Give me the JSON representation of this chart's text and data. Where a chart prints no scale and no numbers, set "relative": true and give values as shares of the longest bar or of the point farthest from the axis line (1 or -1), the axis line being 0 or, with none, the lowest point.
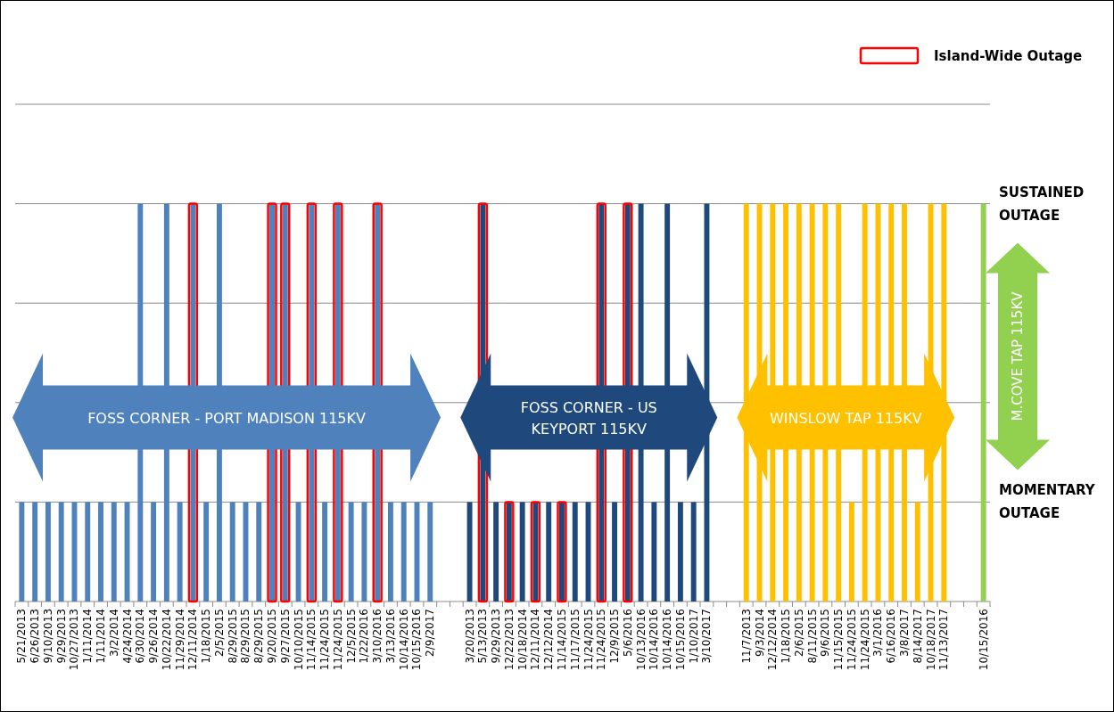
{
  "chart_data": {
    "type": "bar",
    "relative": true,
    "categories": [
      "5/21/2013",
      "6/26/2013",
      "9/10/2013",
      "9/29/2013",
      "10/27/2013",
      "1/11/2014",
      "1/11/2014",
      "3/2/2014",
      "4/24/2014",
      "6/30/2014",
      "9/26/2014",
      "10/22/2014",
      "11/29/2014",
      "12/11/2014",
      "1/18/2015",
      "2/5/2015",
      "8/29/2015",
      "8/29/2015",
      "8/29/2015",
      "9/20/2015",
      "9/27/2015",
      "10/10/2015",
      "11/14/2015",
      "11/24/2015",
      "11/24/2015",
      "12/5/2015",
      "1/22/2016",
      "3/10/2016",
      "3/13/2016",
      "10/14/2016",
      "10/15/2016",
      "2/9/2017",
      null,
      null,
      "3/20/2013",
      "5/13/2013",
      "9/29/2013",
      "12/22/2013",
      "10/18/2014",
      "12/11/2014",
      "12/12/2014",
      "11/14/2015",
      "11/17/2015",
      "11/24/2015",
      "11/24/2015",
      "12/9/2015",
      "5/6/2016",
      "10/13/2016",
      "10/14/2016",
      "10/14/2016",
      "10/15/2016",
      "1/10/2017",
      "3/10/2017",
      null,
      null,
      "11/7/2013",
      "9/3/2014",
      "12/12/2014",
      "1/18/2015",
      "2/6/2015",
      "8/11/2015",
      "9/6/2015",
      "11/15/2015",
      "11/24/2015",
      "11/24/2015",
      "3/1/2016",
      "6/16/2016",
      "3/8/2017",
      "8/14/2017",
      "10/18/2017",
      "11/13/2017",
      null,
      null,
      "10/15/2016"
    ],
    "series": [
      {
        "name": "FOSS CORNER - PORT MADISON 115KV",
        "color": "#4f81bd",
        "values": [
          0.25,
          0.25,
          0.25,
          0.25,
          0.25,
          0.25,
          0.25,
          0.25,
          0.25,
          1,
          0.25,
          1,
          0.25,
          1,
          0.25,
          1,
          0.25,
          0.25,
          0.25,
          1,
          1,
          0.25,
          1,
          0.25,
          1,
          0.25,
          0.25,
          1,
          0.25,
          0.25,
          0.25,
          0.25,
          null,
          null,
          null,
          null,
          null,
          null,
          null,
          null,
          null,
          null,
          null,
          null,
          null,
          null,
          null,
          null,
          null,
          null,
          null,
          null,
          null,
          null,
          null,
          null,
          null,
          null,
          null,
          null,
          null,
          null,
          null,
          null,
          null,
          null,
          null,
          null,
          null,
          null,
          null,
          null,
          null,
          null
        ]
      },
      {
        "name": "FOSS CORNER - US KEYPORT 115KV",
        "color": "#1f497d",
        "values": [
          null,
          null,
          null,
          null,
          null,
          null,
          null,
          null,
          null,
          null,
          null,
          null,
          null,
          null,
          null,
          null,
          null,
          null,
          null,
          null,
          null,
          null,
          null,
          null,
          null,
          null,
          null,
          null,
          null,
          null,
          null,
          null,
          null,
          null,
          0.25,
          1,
          0.25,
          0.25,
          0.25,
          0.25,
          0.25,
          0.25,
          0.25,
          0.25,
          1,
          0.25,
          1,
          1,
          0.25,
          1,
          0.25,
          0.25,
          1,
          null,
          null,
          null,
          null,
          null,
          null,
          null,
          null,
          null,
          null,
          null,
          null,
          null,
          null,
          null,
          null,
          null,
          null,
          null,
          null,
          null
        ]
      },
      {
        "name": "WINSLOW TAP 115KV",
        "color": "#ffc000",
        "values": [
          null,
          null,
          null,
          null,
          null,
          null,
          null,
          null,
          null,
          null,
          null,
          null,
          null,
          null,
          null,
          null,
          null,
          null,
          null,
          null,
          null,
          null,
          null,
          null,
          null,
          null,
          null,
          null,
          null,
          null,
          null,
          null,
          null,
          null,
          null,
          null,
          null,
          null,
          null,
          null,
          null,
          null,
          null,
          null,
          null,
          null,
          null,
          null,
          null,
          null,
          null,
          null,
          null,
          null,
          null,
          1,
          1,
          1,
          1,
          1,
          1,
          1,
          1,
          0.25,
          1,
          1,
          1,
          1,
          0.25,
          1,
          1,
          null,
          null,
          null
        ]
      },
      {
        "name": "M.COVE TAP 115KV",
        "color": "#92d050",
        "values": [
          null,
          null,
          null,
          null,
          null,
          null,
          null,
          null,
          null,
          null,
          null,
          null,
          null,
          null,
          null,
          null,
          null,
          null,
          null,
          null,
          null,
          null,
          null,
          null,
          null,
          null,
          null,
          null,
          null,
          null,
          null,
          null,
          null,
          null,
          null,
          null,
          null,
          null,
          null,
          null,
          null,
          null,
          null,
          null,
          null,
          null,
          null,
          null,
          null,
          null,
          null,
          null,
          null,
          null,
          null,
          null,
          null,
          null,
          null,
          null,
          null,
          null,
          null,
          null,
          null,
          null,
          null,
          null,
          null,
          null,
          null,
          null,
          null,
          1
        ]
      },
      {
        "name": "Island-Wide Outage",
        "color": "#ff0000",
        "values": [
          null,
          null,
          null,
          null,
          null,
          null,
          null,
          null,
          null,
          null,
          null,
          null,
          null,
          1,
          null,
          null,
          null,
          null,
          null,
          1,
          1,
          null,
          1,
          null,
          1,
          null,
          null,
          1,
          null,
          null,
          null,
          null,
          null,
          null,
          null,
          1,
          null,
          0.25,
          null,
          0.25,
          null,
          0.25,
          null,
          null,
          1,
          null,
          1,
          null,
          null,
          null,
          null,
          null,
          null,
          null,
          null,
          null,
          null,
          null,
          null,
          null,
          null,
          null,
          null,
          null,
          null,
          null,
          null,
          null,
          null,
          null,
          null,
          null,
          null,
          null
        ]
      }
    ],
    "ref_lines": [
      {
        "axis": "y",
        "value": 0.25,
        "label": "MOMENTARY OUTAGE"
      },
      {
        "axis": "y",
        "value": 0.5,
        "label": null
      },
      {
        "axis": "y",
        "value": 0.75,
        "label": null
      },
      {
        "axis": "y",
        "value": 1,
        "label": "SUSTAINED OUTAGE"
      },
      {
        "axis": "y",
        "value": 1.25,
        "label": null
      }
    ],
    "legend": "top right"
  }
}
